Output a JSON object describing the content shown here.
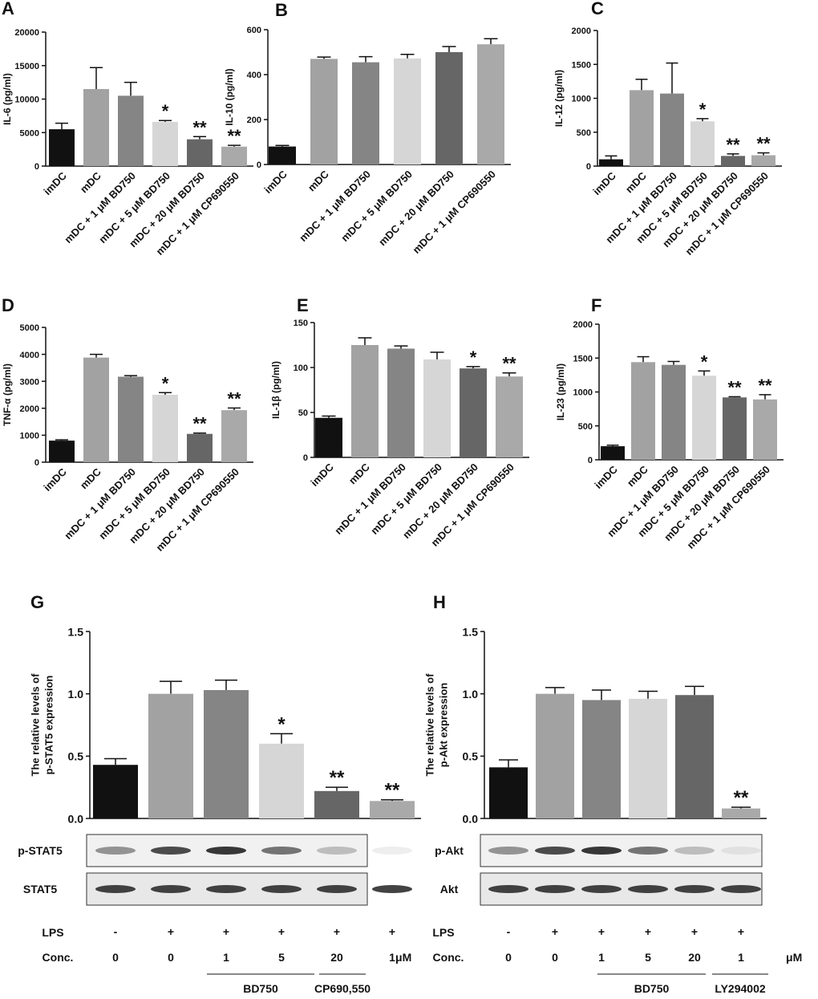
{
  "chart_data": [
    {
      "type": "bar",
      "panel": "A",
      "ylabel": [
        "IL-6 (pg/ml)"
      ],
      "categories": [
        "imDC",
        "mDC",
        "mDC + 1 μM BD750",
        "mDC + 5 μM BD750",
        "mDC + 20 μM BD750",
        "mDC + 1 μM CP690550"
      ],
      "values": [
        5500,
        11500,
        10500,
        6600,
        4000,
        2900
      ],
      "errors": [
        900,
        3200,
        2000,
        200,
        400,
        200
      ],
      "annotations": [
        null,
        null,
        null,
        "*",
        "**",
        "**"
      ],
      "colors": [
        "#111111",
        "#a2a2a2",
        "#858585",
        "#d6d6d6",
        "#666666",
        "#a9a9a9"
      ],
      "ylim": [
        0,
        20000
      ],
      "yticks": [
        0,
        5000,
        10000,
        15000,
        20000
      ]
    },
    {
      "type": "bar",
      "panel": "B",
      "ylabel": [
        "IL-10 (pg/ml)"
      ],
      "categories": [
        "imDC",
        "mDC",
        "mDC + 1 μM BD750",
        "mDC + 5 μM BD750",
        "mDC + 20 μM BD750",
        "mDC + 1 μM CP690550"
      ],
      "values": [
        80,
        470,
        455,
        472,
        500,
        535
      ],
      "errors": [
        5,
        8,
        25,
        18,
        25,
        25
      ],
      "annotations": [
        null,
        null,
        null,
        null,
        null,
        null
      ],
      "colors": [
        "#111111",
        "#a2a2a2",
        "#858585",
        "#d6d6d6",
        "#666666",
        "#a9a9a9"
      ],
      "ylim": [
        0,
        600
      ],
      "yticks": [
        0,
        200,
        400,
        600
      ]
    },
    {
      "type": "bar",
      "panel": "C",
      "ylabel": [
        "IL-12 (pg/ml)"
      ],
      "categories": [
        "imDC",
        "mDC",
        "mDC + 1 μM BD750",
        "mDC + 5 μM BD750",
        "mDC + 20 μM BD750",
        "mDC + 1 μM CP690550"
      ],
      "values": [
        100,
        1120,
        1070,
        660,
        150,
        160
      ],
      "errors": [
        50,
        160,
        450,
        40,
        30,
        35
      ],
      "annotations": [
        null,
        null,
        null,
        "*",
        "**",
        "**"
      ],
      "colors": [
        "#111111",
        "#a2a2a2",
        "#858585",
        "#d6d6d6",
        "#666666",
        "#a9a9a9"
      ],
      "ylim": [
        0,
        2000
      ],
      "yticks": [
        0,
        500,
        1000,
        1500,
        2000
      ]
    },
    {
      "type": "bar",
      "panel": "D",
      "ylabel": [
        "TNF-α (pg/ml)"
      ],
      "categories": [
        "imDC",
        "mDC",
        "mDC + 1 μM BD750",
        "mDC + 5 μM BD750",
        "mDC + 20 μM BD750",
        "mDC + 1 μM CP690550"
      ],
      "values": [
        800,
        3880,
        3170,
        2500,
        1050,
        1930
      ],
      "errors": [
        30,
        120,
        40,
        80,
        30,
        80
      ],
      "annotations": [
        null,
        null,
        null,
        "*",
        "**",
        "**"
      ],
      "colors": [
        "#111111",
        "#a2a2a2",
        "#858585",
        "#d6d6d6",
        "#666666",
        "#a9a9a9"
      ],
      "ylim": [
        0,
        5000
      ],
      "yticks": [
        0,
        1000,
        2000,
        3000,
        4000,
        5000
      ]
    },
    {
      "type": "bar",
      "panel": "E",
      "ylabel": [
        "IL-1β (pg/ml)"
      ],
      "categories": [
        "imDC",
        "mDC",
        "mDC + 1 μM BD750",
        "mDC + 5 μM BD750",
        "mDC + 20 μM BD750",
        "mDC + 1 μM CP690550"
      ],
      "values": [
        44,
        125,
        121,
        109,
        99,
        90
      ],
      "errors": [
        2,
        8,
        3,
        8,
        2,
        4
      ],
      "annotations": [
        null,
        null,
        null,
        null,
        "*",
        "**"
      ],
      "colors": [
        "#111111",
        "#a2a2a2",
        "#858585",
        "#d6d6d6",
        "#666666",
        "#a9a9a9"
      ],
      "ylim": [
        0,
        150
      ],
      "yticks": [
        0,
        50,
        100,
        150
      ]
    },
    {
      "type": "bar",
      "panel": "F",
      "ylabel": [
        "IL-23 (pg/ml)"
      ],
      "categories": [
        "imDC",
        "mDC",
        "mDC + 1 μM BD750",
        "mDC + 5 μM BD750",
        "mDC + 20 μM BD750",
        "mDC + 1 μM CP690550"
      ],
      "values": [
        200,
        1440,
        1400,
        1240,
        920,
        890
      ],
      "errors": [
        15,
        80,
        50,
        70,
        10,
        70
      ],
      "annotations": [
        null,
        null,
        null,
        "*",
        "**",
        "**"
      ],
      "colors": [
        "#111111",
        "#a2a2a2",
        "#858585",
        "#d6d6d6",
        "#666666",
        "#a9a9a9"
      ],
      "ylim": [
        0,
        2000
      ],
      "yticks": [
        0,
        500,
        1000,
        1500,
        2000
      ]
    },
    {
      "type": "bar",
      "panel": "G",
      "ylabel": [
        "The relative levels of",
        "p-STAT5 expression"
      ],
      "values": [
        0.43,
        1.0,
        1.03,
        0.6,
        0.22,
        0.14
      ],
      "errors": [
        0.05,
        0.1,
        0.08,
        0.08,
        0.03,
        0.01
      ],
      "annotations": [
        null,
        null,
        null,
        "*",
        "**",
        "**"
      ],
      "colors": [
        "#111111",
        "#a2a2a2",
        "#858585",
        "#d6d6d6",
        "#666666",
        "#a9a9a9"
      ],
      "ylim": [
        0,
        1.5
      ],
      "yticks": [
        {
          "value": 0,
          "label": "0.0"
        },
        {
          "value": 0.5,
          "label": "0.5"
        },
        {
          "value": 1,
          "label": "1.0"
        },
        {
          "value": 1.5,
          "label": "1.5"
        }
      ],
      "blots": [
        "p-STAT5",
        "STAT5"
      ],
      "lps_label": "LPS",
      "lps": [
        "-",
        "+",
        "+",
        "+",
        "+",
        "+"
      ],
      "conc_label": "Conc.",
      "conc": [
        0,
        0,
        1,
        5,
        20,
        1
      ],
      "conc_unit": "μM",
      "groups": [
        {
          "label": "BD750"
        },
        {
          "label": "CP690,550"
        }
      ]
    },
    {
      "type": "bar",
      "panel": "H",
      "ylabel": [
        "The relative levels of",
        "p-Akt expression"
      ],
      "values": [
        0.41,
        1.0,
        0.95,
        0.96,
        0.99,
        0.08
      ],
      "errors": [
        0.06,
        0.05,
        0.08,
        0.06,
        0.07,
        0.01
      ],
      "annotations": [
        null,
        null,
        null,
        null,
        null,
        "**"
      ],
      "colors": [
        "#111111",
        "#a2a2a2",
        "#858585",
        "#d6d6d6",
        "#666666",
        "#a9a9a9"
      ],
      "ylim": [
        0,
        1.5
      ],
      "yticks": [
        {
          "value": 0,
          "label": "0.0"
        },
        {
          "value": 0.5,
          "label": "0.5"
        },
        {
          "value": 1,
          "label": "1.0"
        },
        {
          "value": 1.5,
          "label": "1.5"
        }
      ],
      "blots": [
        "p-Akt",
        "Akt"
      ],
      "lps_label": "LPS",
      "lps": [
        "-",
        "+",
        "+",
        "+",
        "+",
        "+"
      ],
      "conc_label": "Conc.",
      "conc": [
        0,
        0,
        1,
        5,
        20,
        1
      ],
      "conc_unit": "μM",
      "groups": [
        {
          "label": "BD750"
        },
        {
          "label": "LY294002"
        }
      ]
    }
  ]
}
